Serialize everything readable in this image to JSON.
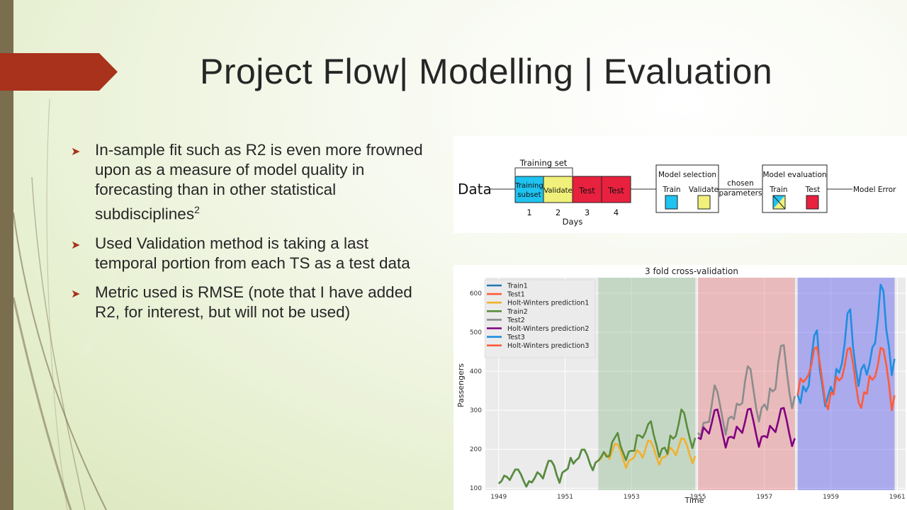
{
  "slide": {
    "title": "Project Flow| Modelling | Evaluation",
    "bullets": [
      {
        "text": "In-sample fit such as R2 is even more frowned upon as a measure of model quality in forecasting than in other statistical subdisciplines",
        "sup": "2"
      },
      {
        "text": "Used Validation method is taking a last temporal portion from each TS as a test data",
        "sup": ""
      },
      {
        "text": "Metric used is RMSE (note that I have added R2, for interest, but will not be used)",
        "sup": ""
      }
    ],
    "colors": {
      "accent": "#a8321b",
      "bar": "#7a6e4f"
    }
  },
  "flow": {
    "data_label": "Data",
    "training_set_label": "Training set",
    "boxes": [
      {
        "line1": "Training",
        "line2": "subset",
        "color": "#1ec3f0"
      },
      {
        "line1": "Validate",
        "line2": "",
        "color": "#f0f07a"
      },
      {
        "line1": "Test",
        "line2": "",
        "color": "#e8213f"
      },
      {
        "line1": "Test",
        "line2": "",
        "color": "#e8213f"
      }
    ],
    "day_numbers": [
      "1",
      "2",
      "3",
      "4"
    ],
    "days_label": "Days",
    "model_selection": {
      "title": "Model selection",
      "train": "Train",
      "validate": "Validate"
    },
    "chosen_line1": "chosen",
    "chosen_line2": "parameters",
    "model_evaluation": {
      "title": "Model evaluation",
      "train": "Train",
      "test": "Test"
    },
    "output_label": "Model Error"
  },
  "chart_data": {
    "type": "line",
    "title": "3 fold cross-validation",
    "xlabel": "Time",
    "ylabel": "Passengers",
    "xlim": [
      1948.6,
      1961.25
    ],
    "ylim": [
      95,
      640
    ],
    "xticks": [
      1949,
      1951,
      1953,
      1955,
      1957,
      1959,
      1961
    ],
    "yticks": [
      100,
      200,
      300,
      400,
      500,
      600
    ],
    "grid": true,
    "legend_position": "top-left",
    "shaded_regions": [
      {
        "x0": 1952.0,
        "x1": 1954.92,
        "color": "#8fbc8f"
      },
      {
        "x0": 1955.0,
        "x1": 1957.92,
        "color": "#e6787a"
      },
      {
        "x0": 1958.0,
        "x1": 1960.92,
        "color": "#5050f0"
      }
    ],
    "series": [
      {
        "name": "Train1",
        "color": "#1f77b4",
        "x0": 1949.0,
        "values": [
          112,
          118,
          132,
          129,
          121,
          135,
          148,
          148,
          136,
          119,
          104,
          118,
          115,
          126,
          141,
          135,
          125,
          149,
          170,
          170,
          158,
          133,
          114,
          140,
          145,
          150,
          178,
          163,
          172,
          178,
          199,
          199,
          184,
          162,
          146,
          166
        ]
      },
      {
        "name": "Test1",
        "color": "#ff5b3b",
        "x0": 1952.0,
        "values": []
      },
      {
        "name": "Holt-Winters prediction1",
        "color": "#f0b030",
        "x0": 1952.0,
        "values": [
          170,
          176,
          192,
          186,
          175,
          195,
          214,
          212,
          197,
          174,
          152,
          170,
          174,
          180,
          198,
          191,
          178,
          200,
          222,
          220,
          204,
          180,
          160,
          178,
          180,
          186,
          204,
          197,
          184,
          206,
          228,
          226,
          210,
          186,
          164,
          182
        ]
      },
      {
        "name": "Train2",
        "color": "#5b8c3a",
        "x0": 1949.0,
        "values": [
          112,
          118,
          132,
          129,
          121,
          135,
          148,
          148,
          136,
          119,
          104,
          118,
          115,
          126,
          141,
          135,
          125,
          149,
          170,
          170,
          158,
          133,
          114,
          140,
          145,
          150,
          178,
          163,
          172,
          178,
          199,
          199,
          184,
          162,
          146,
          166,
          171,
          180,
          193,
          181,
          183,
          218,
          230,
          242,
          209,
          191,
          172,
          194,
          196,
          196,
          236,
          235,
          229,
          243,
          264,
          272,
          237,
          211,
          180,
          201,
          204,
          188,
          235,
          227,
          234,
          264,
          302,
          293,
          259,
          229,
          203,
          229
        ]
      },
      {
        "name": "Test2",
        "color": "#8c8c8c",
        "x0": 1955.0,
        "values": [
          242,
          233,
          267,
          269,
          270,
          315,
          364,
          347,
          312,
          274,
          237,
          278,
          284,
          277,
          317,
          313,
          318,
          374,
          413,
          405,
          355,
          306,
          271,
          306,
          315,
          301,
          356,
          348,
          355,
          422,
          465,
          467,
          404,
          347,
          305,
          336
        ]
      },
      {
        "name": "Holt-Winters prediction2",
        "color": "#800080",
        "x0": 1955.0,
        "values": [
          230,
          226,
          256,
          248,
          240,
          268,
          300,
          302,
          272,
          236,
          204,
          230,
          232,
          228,
          258,
          250,
          242,
          270,
          302,
          304,
          274,
          238,
          206,
          232,
          234,
          230,
          260,
          252,
          244,
          272,
          304,
          306,
          276,
          240,
          208,
          228
        ]
      },
      {
        "name": "Test3",
        "color": "#1f8ee0",
        "x0": 1958.0,
        "values": [
          340,
          318,
          362,
          348,
          363,
          435,
          491,
          505,
          404,
          359,
          310,
          337,
          360,
          342,
          406,
          396,
          420,
          472,
          548,
          559,
          463,
          407,
          362,
          405,
          417,
          391,
          419,
          461,
          472,
          535,
          622,
          606,
          508,
          461,
          390,
          432
        ]
      },
      {
        "name": "Holt-Winters prediction3",
        "color": "#ff5b3b",
        "x0": 1958.0,
        "values": [
          338,
          382,
          372,
          380,
          392,
          418,
          458,
          462,
          422,
          372,
          322,
          302,
          346,
          340,
          386,
          376,
          384,
          414,
          456,
          460,
          420,
          368,
          320,
          306,
          346,
          342,
          388,
          378,
          386,
          416,
          460,
          456,
          418,
          366,
          300,
          338
        ]
      }
    ]
  }
}
